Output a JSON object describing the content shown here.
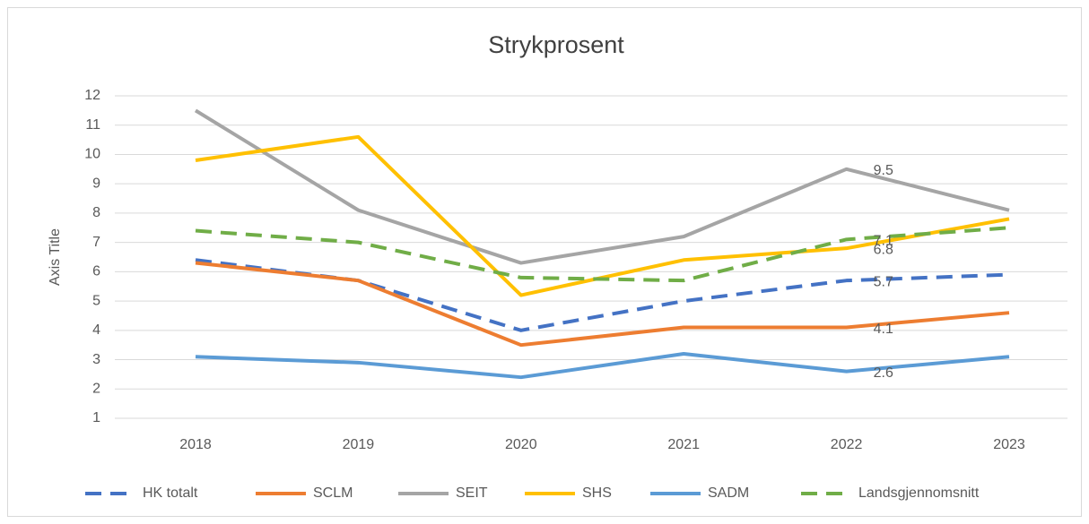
{
  "chart_data": {
    "type": "line",
    "title": "Strykprosent",
    "y_label": "Axis Title",
    "categories": [
      "2018",
      "2019",
      "2020",
      "2021",
      "2022",
      "2023"
    ],
    "ylim": [
      1,
      12
    ],
    "yticks": [
      1,
      2,
      3,
      4,
      5,
      6,
      7,
      8,
      9,
      10,
      11,
      12
    ],
    "grid": true,
    "legend": "bottom",
    "series": [
      {
        "name": "HK totalt",
        "color": "#4472c4",
        "dash": true,
        "values": [
          6.4,
          5.7,
          4.0,
          5.0,
          5.7,
          5.9
        ],
        "value_labels": [
          null,
          null,
          null,
          null,
          "5.7",
          null
        ]
      },
      {
        "name": "SCLM",
        "color": "#ed7d31",
        "dash": false,
        "values": [
          6.3,
          5.7,
          3.5,
          4.1,
          4.1,
          4.6
        ],
        "value_labels": [
          null,
          null,
          null,
          null,
          "4.1",
          null
        ]
      },
      {
        "name": "SEIT",
        "color": "#a5a5a5",
        "dash": false,
        "values": [
          11.5,
          8.1,
          6.3,
          7.2,
          9.5,
          8.1
        ],
        "value_labels": [
          null,
          null,
          null,
          null,
          "9.5",
          null
        ]
      },
      {
        "name": "SHS",
        "color": "#ffc000",
        "dash": false,
        "values": [
          9.8,
          10.6,
          5.2,
          6.4,
          6.8,
          7.8
        ],
        "value_labels": [
          null,
          null,
          null,
          null,
          "6.8",
          null
        ]
      },
      {
        "name": "SADM",
        "color": "#5b9bd5",
        "dash": false,
        "values": [
          3.1,
          2.9,
          2.4,
          3.2,
          2.6,
          3.1
        ],
        "value_labels": [
          null,
          null,
          null,
          null,
          "2.6",
          null
        ]
      },
      {
        "name": "Landsgjennomsnitt",
        "color": "#70ad47",
        "dash": true,
        "values": [
          7.4,
          7.0,
          5.8,
          5.7,
          7.1,
          7.5
        ],
        "value_labels": [
          null,
          null,
          null,
          null,
          "7.1",
          null
        ]
      }
    ]
  }
}
